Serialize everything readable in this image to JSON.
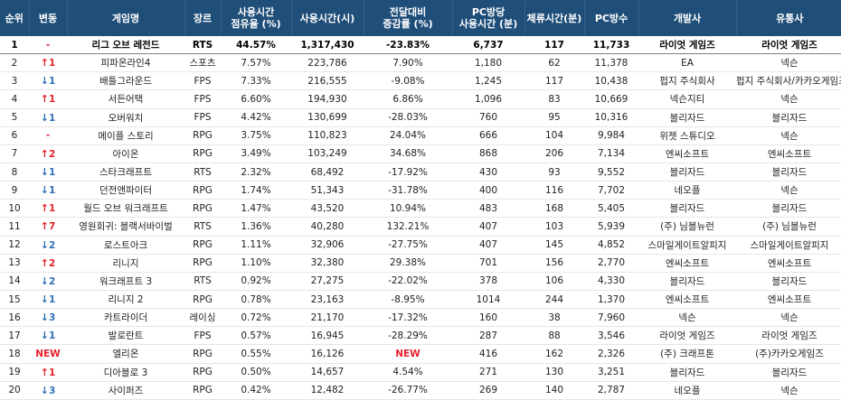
{
  "headers": {
    "rank": "순위",
    "change": "변동",
    "game": "게임명",
    "genre": "장르",
    "share": [
      "사용시간",
      "점유율 (%)"
    ],
    "hours": "사용시간(시)",
    "growth": [
      "전달대비",
      "증감률 (%)"
    ],
    "per_pc": [
      "PC방당",
      "사용시간 (분)"
    ],
    "stay": "체류시간(분)",
    "pcs": "PC방수",
    "developer": "개발사",
    "publisher": "유통사"
  },
  "rows": [
    {
      "rank": "1",
      "dir": "hold",
      "chg": "-",
      "name": "리그 오브 레전드",
      "genre": "RTS",
      "share": "44.57%",
      "hours": "1,317,430",
      "growth": "-23.83%",
      "per_pc": "6,737",
      "stay": "117",
      "pcs": "11,733",
      "dev": "라이엇 게임즈",
      "pub": "라이엇 게임즈"
    },
    {
      "rank": "2",
      "dir": "up",
      "chg": "1",
      "name": "피파온라인4",
      "genre": "스포츠",
      "share": "7.57%",
      "hours": "223,786",
      "growth": "7.90%",
      "per_pc": "1,180",
      "stay": "62",
      "pcs": "11,378",
      "dev": "EA",
      "pub": "넥슨"
    },
    {
      "rank": "3",
      "dir": "down",
      "chg": "1",
      "name": "배틀그라운드",
      "genre": "FPS",
      "share": "7.33%",
      "hours": "216,555",
      "growth": "-9.08%",
      "per_pc": "1,245",
      "stay": "117",
      "pcs": "10,438",
      "dev": "펍지 주식회사",
      "pub": "펍지 주식회사/카카오게임즈"
    },
    {
      "rank": "4",
      "dir": "up",
      "chg": "1",
      "name": "서든어택",
      "genre": "FPS",
      "share": "6.60%",
      "hours": "194,930",
      "growth": "6.86%",
      "per_pc": "1,096",
      "stay": "83",
      "pcs": "10,669",
      "dev": "넥슨지티",
      "pub": "넥슨"
    },
    {
      "rank": "5",
      "dir": "down",
      "chg": "1",
      "name": "오버워치",
      "genre": "FPS",
      "share": "4.42%",
      "hours": "130,699",
      "growth": "-28.03%",
      "per_pc": "760",
      "stay": "95",
      "pcs": "10,316",
      "dev": "블리자드",
      "pub": "블리자드"
    },
    {
      "rank": "6",
      "dir": "hold",
      "chg": "-",
      "name": "메이플 스토리",
      "genre": "RPG",
      "share": "3.75%",
      "hours": "110,823",
      "growth": "24.04%",
      "per_pc": "666",
      "stay": "104",
      "pcs": "9,984",
      "dev": "위젯 스튜디오",
      "pub": "넥슨"
    },
    {
      "rank": "7",
      "dir": "up",
      "chg": "2",
      "name": "아이온",
      "genre": "RPG",
      "share": "3.49%",
      "hours": "103,249",
      "growth": "34.68%",
      "per_pc": "868",
      "stay": "206",
      "pcs": "7,134",
      "dev": "엔씨소프트",
      "pub": "엔씨소프트"
    },
    {
      "rank": "8",
      "dir": "down",
      "chg": "1",
      "name": "스타크래프트",
      "genre": "RTS",
      "share": "2.32%",
      "hours": "68,492",
      "growth": "-17.92%",
      "per_pc": "430",
      "stay": "93",
      "pcs": "9,552",
      "dev": "블리자드",
      "pub": "블리자드"
    },
    {
      "rank": "9",
      "dir": "down",
      "chg": "1",
      "name": "던전앤파이터",
      "genre": "RPG",
      "share": "1.74%",
      "hours": "51,343",
      "growth": "-31.78%",
      "per_pc": "400",
      "stay": "116",
      "pcs": "7,702",
      "dev": "네오플",
      "pub": "넥슨"
    },
    {
      "rank": "10",
      "dir": "up",
      "chg": "1",
      "name": "월드 오브 워크래프트",
      "genre": "RPG",
      "share": "1.47%",
      "hours": "43,520",
      "growth": "10.94%",
      "per_pc": "483",
      "stay": "168",
      "pcs": "5,405",
      "dev": "블리자드",
      "pub": "블리자드"
    },
    {
      "rank": "11",
      "dir": "up",
      "chg": "7",
      "name": "영원회귀: 블랙서바이벌",
      "genre": "RTS",
      "share": "1.36%",
      "hours": "40,280",
      "growth": "132.21%",
      "per_pc": "407",
      "stay": "103",
      "pcs": "5,939",
      "dev": "(주) 님블뉴런",
      "pub": "(주) 님블뉴런"
    },
    {
      "rank": "12",
      "dir": "down",
      "chg": "2",
      "name": "로스트아크",
      "genre": "RPG",
      "share": "1.11%",
      "hours": "32,906",
      "growth": "-27.75%",
      "per_pc": "407",
      "stay": "145",
      "pcs": "4,852",
      "dev": "스마일게이트알피지",
      "pub": "스마일게이트알피지"
    },
    {
      "rank": "13",
      "dir": "up",
      "chg": "2",
      "name": "리니지",
      "genre": "RPG",
      "share": "1.10%",
      "hours": "32,380",
      "growth": "29.38%",
      "per_pc": "701",
      "stay": "156",
      "pcs": "2,770",
      "dev": "엔씨소프트",
      "pub": "엔씨소프트"
    },
    {
      "rank": "14",
      "dir": "down",
      "chg": "2",
      "name": "워크래프트 3",
      "genre": "RTS",
      "share": "0.92%",
      "hours": "27,275",
      "growth": "-22.02%",
      "per_pc": "378",
      "stay": "106",
      "pcs": "4,330",
      "dev": "블리자드",
      "pub": "블리자드"
    },
    {
      "rank": "15",
      "dir": "down",
      "chg": "1",
      "name": "리니지 2",
      "genre": "RPG",
      "share": "0.78%",
      "hours": "23,163",
      "growth": "-8.95%",
      "per_pc": "1014",
      "stay": "244",
      "pcs": "1,370",
      "dev": "엔씨소프트",
      "pub": "엔씨소프트"
    },
    {
      "rank": "16",
      "dir": "down",
      "chg": "3",
      "name": "카트라이더",
      "genre": "레이싱",
      "share": "0.72%",
      "hours": "21,170",
      "growth": "-17.32%",
      "per_pc": "160",
      "stay": "38",
      "pcs": "7,960",
      "dev": "넥슨",
      "pub": "넥슨"
    },
    {
      "rank": "17",
      "dir": "down",
      "chg": "1",
      "name": "발로란트",
      "genre": "FPS",
      "share": "0.57%",
      "hours": "16,945",
      "growth": "-28.29%",
      "per_pc": "287",
      "stay": "88",
      "pcs": "3,546",
      "dev": "라이엇 게임즈",
      "pub": "라이엇 게임즈"
    },
    {
      "rank": "18",
      "dir": "new",
      "chg": "NEW",
      "name": "엘리온",
      "genre": "RPG",
      "share": "0.55%",
      "hours": "16,126",
      "growth": "NEW",
      "per_pc": "416",
      "stay": "162",
      "pcs": "2,326",
      "dev": "(주) 크래프톤",
      "pub": "(주)카카오게임즈"
    },
    {
      "rank": "19",
      "dir": "up",
      "chg": "1",
      "name": "디아블로 3",
      "genre": "RPG",
      "share": "0.50%",
      "hours": "14,657",
      "growth": "4.54%",
      "per_pc": "271",
      "stay": "130",
      "pcs": "3,251",
      "dev": "블리자드",
      "pub": "블리자드"
    },
    {
      "rank": "20",
      "dir": "down",
      "chg": "3",
      "name": "사이퍼즈",
      "genre": "RPG",
      "share": "0.42%",
      "hours": "12,482",
      "growth": "-26.77%",
      "per_pc": "269",
      "stay": "140",
      "pcs": "2,787",
      "dev": "네오플",
      "pub": "넥슨"
    }
  ],
  "colors": {
    "header_bg": "#1f4e79",
    "up": "#e8202a",
    "down": "#2e6fb5",
    "new": "#e8202a"
  },
  "icons": {
    "up": "arrow-up-icon",
    "down": "arrow-down-icon"
  }
}
